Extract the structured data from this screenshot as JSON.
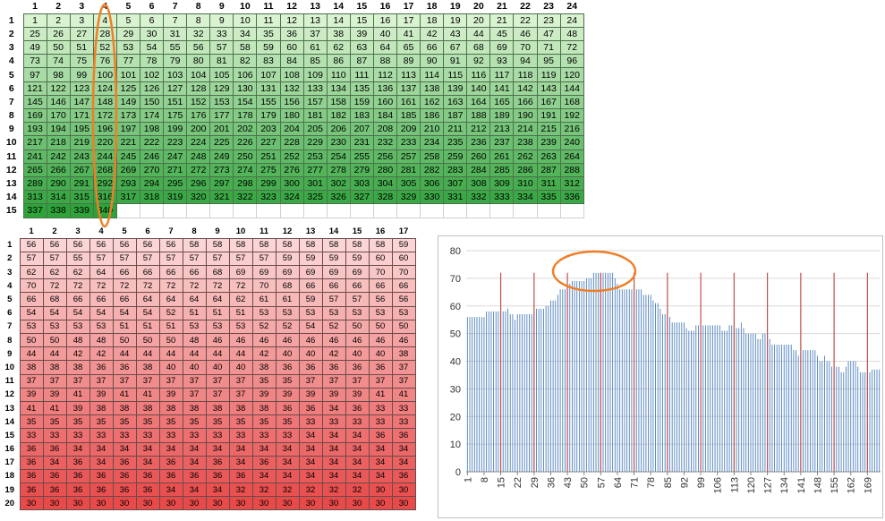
{
  "green_table": {
    "col_headers": [
      "1",
      "2",
      "3",
      "4",
      "5",
      "6",
      "7",
      "8",
      "9",
      "10",
      "11",
      "12",
      "13",
      "14",
      "15",
      "16",
      "17",
      "18",
      "19",
      "20",
      "21",
      "22",
      "23",
      "24"
    ],
    "row_headers": [
      "1",
      "2",
      "3",
      "4",
      "5",
      "6",
      "7",
      "8",
      "9",
      "10",
      "11",
      "12",
      "13",
      "14",
      "15"
    ],
    "rows": [
      [
        "1",
        "2",
        "3",
        "4",
        "5",
        "6",
        "7",
        "8",
        "9",
        "10",
        "11",
        "12",
        "13",
        "14",
        "15",
        "16",
        "17",
        "18",
        "19",
        "20",
        "21",
        "22",
        "23",
        "24"
      ],
      [
        "25",
        "26",
        "27",
        "28",
        "29",
        "30",
        "31",
        "32",
        "33",
        "34",
        "35",
        "36",
        "37",
        "38",
        "39",
        "40",
        "41",
        "42",
        "43",
        "44",
        "45",
        "46",
        "47",
        "48"
      ],
      [
        "49",
        "50",
        "51",
        "52",
        "53",
        "54",
        "55",
        "56",
        "57",
        "58",
        "59",
        "60",
        "61",
        "62",
        "63",
        "64",
        "65",
        "66",
        "67",
        "68",
        "69",
        "70",
        "71",
        "72"
      ],
      [
        "73",
        "74",
        "75",
        "76",
        "77",
        "78",
        "79",
        "80",
        "81",
        "82",
        "83",
        "84",
        "85",
        "86",
        "87",
        "88",
        "89",
        "90",
        "91",
        "92",
        "93",
        "94",
        "95",
        "96"
      ],
      [
        "97",
        "98",
        "99",
        "100",
        "101",
        "102",
        "103",
        "104",
        "105",
        "106",
        "107",
        "108",
        "109",
        "110",
        "111",
        "112",
        "113",
        "114",
        "115",
        "116",
        "117",
        "118",
        "119",
        "120"
      ],
      [
        "121",
        "122",
        "123",
        "124",
        "125",
        "126",
        "127",
        "128",
        "129",
        "130",
        "131",
        "132",
        "133",
        "134",
        "135",
        "136",
        "137",
        "138",
        "139",
        "140",
        "141",
        "142",
        "143",
        "144"
      ],
      [
        "145",
        "146",
        "147",
        "148",
        "149",
        "150",
        "151",
        "152",
        "153",
        "154",
        "155",
        "156",
        "157",
        "158",
        "159",
        "160",
        "161",
        "162",
        "163",
        "164",
        "165",
        "166",
        "167",
        "168"
      ],
      [
        "169",
        "170",
        "171",
        "172",
        "173",
        "174",
        "175",
        "176",
        "177",
        "178",
        "179",
        "180",
        "181",
        "182",
        "183",
        "184",
        "185",
        "186",
        "187",
        "188",
        "189",
        "190",
        "191",
        "192"
      ],
      [
        "193",
        "194",
        "195",
        "196",
        "197",
        "198",
        "199",
        "200",
        "201",
        "202",
        "203",
        "204",
        "205",
        "206",
        "207",
        "208",
        "209",
        "210",
        "211",
        "212",
        "213",
        "214",
        "215",
        "216"
      ],
      [
        "217",
        "218",
        "219",
        "220",
        "221",
        "222",
        "223",
        "224",
        "225",
        "226",
        "227",
        "228",
        "229",
        "230",
        "231",
        "232",
        "233",
        "234",
        "235",
        "236",
        "237",
        "238",
        "239",
        "240"
      ],
      [
        "241",
        "242",
        "243",
        "244",
        "245",
        "246",
        "247",
        "248",
        "249",
        "250",
        "251",
        "252",
        "253",
        "254",
        "255",
        "256",
        "257",
        "258",
        "259",
        "260",
        "261",
        "262",
        "263",
        "264"
      ],
      [
        "265",
        "266",
        "267",
        "268",
        "269",
        "270",
        "271",
        "272",
        "273",
        "274",
        "275",
        "276",
        "277",
        "278",
        "279",
        "280",
        "281",
        "282",
        "283",
        "284",
        "285",
        "286",
        "287",
        "288"
      ],
      [
        "289",
        "290",
        "291",
        "292",
        "293",
        "294",
        "295",
        "296",
        "297",
        "298",
        "299",
        "300",
        "301",
        "302",
        "303",
        "304",
        "305",
        "306",
        "307",
        "308",
        "309",
        "310",
        "311",
        "312"
      ],
      [
        "313",
        "314",
        "315",
        "316",
        "317",
        "318",
        "319",
        "320",
        "321",
        "322",
        "323",
        "324",
        "325",
        "326",
        "327",
        "328",
        "329",
        "330",
        "331",
        "332",
        "333",
        "334",
        "335",
        "336"
      ],
      [
        "337",
        "338",
        "339",
        "340",
        "",
        "",
        "",
        "",
        "",
        "",
        "",
        "",
        "",
        "",
        "",
        "",
        "",
        "",
        "",
        "",
        "",
        "",
        "",
        ""
      ]
    ]
  },
  "red_table": {
    "col_headers": [
      "1",
      "2",
      "3",
      "4",
      "5",
      "6",
      "7",
      "8",
      "9",
      "10",
      "11",
      "12",
      "13",
      "14",
      "15",
      "16",
      "17"
    ],
    "row_headers": [
      "1",
      "2",
      "3",
      "4",
      "5",
      "6",
      "7",
      "8",
      "9",
      "10",
      "11",
      "12",
      "13",
      "14",
      "15",
      "16",
      "17",
      "18",
      "19",
      "20"
    ],
    "rows": [
      [
        "56",
        "56",
        "56",
        "56",
        "56",
        "56",
        "56",
        "58",
        "58",
        "58",
        "58",
        "58",
        "58",
        "58",
        "58",
        "58",
        "59"
      ],
      [
        "57",
        "57",
        "55",
        "57",
        "57",
        "57",
        "57",
        "57",
        "57",
        "57",
        "57",
        "59",
        "59",
        "59",
        "59",
        "60",
        "60"
      ],
      [
        "62",
        "62",
        "62",
        "64",
        "66",
        "66",
        "66",
        "66",
        "68",
        "69",
        "69",
        "69",
        "69",
        "69",
        "69",
        "70",
        "70"
      ],
      [
        "70",
        "72",
        "72",
        "72",
        "72",
        "72",
        "72",
        "72",
        "72",
        "72",
        "70",
        "68",
        "66",
        "66",
        "66",
        "66",
        "66"
      ],
      [
        "66",
        "68",
        "66",
        "66",
        "66",
        "64",
        "64",
        "64",
        "64",
        "62",
        "61",
        "61",
        "59",
        "57",
        "57",
        "56",
        "56"
      ],
      [
        "54",
        "54",
        "54",
        "54",
        "54",
        "54",
        "52",
        "51",
        "51",
        "51",
        "53",
        "53",
        "53",
        "53",
        "53",
        "53",
        "53"
      ],
      [
        "53",
        "53",
        "53",
        "53",
        "51",
        "51",
        "51",
        "53",
        "53",
        "53",
        "52",
        "52",
        "54",
        "52",
        "50",
        "50",
        "50"
      ],
      [
        "50",
        "50",
        "48",
        "48",
        "50",
        "50",
        "50",
        "48",
        "46",
        "46",
        "46",
        "46",
        "46",
        "46",
        "46",
        "46",
        "46"
      ],
      [
        "44",
        "44",
        "42",
        "42",
        "44",
        "44",
        "44",
        "44",
        "44",
        "44",
        "42",
        "40",
        "40",
        "42",
        "40",
        "40",
        "38"
      ],
      [
        "38",
        "38",
        "38",
        "36",
        "36",
        "38",
        "40",
        "40",
        "40",
        "40",
        "38",
        "36",
        "36",
        "36",
        "36",
        "36",
        "37"
      ],
      [
        "37",
        "37",
        "37",
        "37",
        "37",
        "37",
        "37",
        "37",
        "37",
        "37",
        "35",
        "35",
        "37",
        "37",
        "37",
        "37",
        "37"
      ],
      [
        "39",
        "39",
        "41",
        "39",
        "41",
        "41",
        "39",
        "37",
        "37",
        "37",
        "39",
        "39",
        "39",
        "39",
        "39",
        "41",
        "41"
      ],
      [
        "41",
        "41",
        "39",
        "38",
        "38",
        "38",
        "38",
        "38",
        "38",
        "38",
        "38",
        "36",
        "36",
        "34",
        "36",
        "33",
        "33"
      ],
      [
        "35",
        "35",
        "35",
        "35",
        "35",
        "35",
        "35",
        "35",
        "35",
        "35",
        "35",
        "35",
        "33",
        "33",
        "33",
        "33",
        "33"
      ],
      [
        "33",
        "33",
        "33",
        "33",
        "33",
        "33",
        "33",
        "33",
        "33",
        "33",
        "33",
        "33",
        "34",
        "34",
        "34",
        "36",
        "36"
      ],
      [
        "36",
        "36",
        "34",
        "34",
        "34",
        "34",
        "34",
        "34",
        "34",
        "34",
        "34",
        "34",
        "34",
        "34",
        "34",
        "34",
        "34"
      ],
      [
        "36",
        "34",
        "36",
        "34",
        "36",
        "34",
        "36",
        "34",
        "36",
        "34",
        "36",
        "34",
        "34",
        "34",
        "34",
        "34",
        "34"
      ],
      [
        "36",
        "36",
        "36",
        "36",
        "36",
        "36",
        "36",
        "36",
        "36",
        "36",
        "34",
        "34",
        "34",
        "34",
        "34",
        "34",
        "36"
      ],
      [
        "36",
        "36",
        "36",
        "36",
        "36",
        "36",
        "34",
        "34",
        "34",
        "32",
        "32",
        "32",
        "32",
        "32",
        "32",
        "30",
        "30"
      ],
      [
        "30",
        "30",
        "30",
        "30",
        "30",
        "30",
        "30",
        "30",
        "30",
        "30",
        "30",
        "30",
        "30",
        "30",
        "30",
        "30",
        "30"
      ]
    ]
  },
  "colors": {
    "green_light": "#d9f2d0",
    "green_dark": "#2ea33a",
    "red_light": "#fbd5d5",
    "red_dark": "#e84a4a",
    "bar_color": "#4f81bd",
    "marker_color": "#c0504d",
    "highlight_color": "#f07e26",
    "gridline_color": "#d9d9d9"
  },
  "chart_data": {
    "type": "bar",
    "title": "",
    "xlabel": "",
    "ylabel": "",
    "ylim": [
      0,
      80
    ],
    "yticks": [
      "0",
      "10",
      "20",
      "30",
      "40",
      "50",
      "60",
      "70",
      "80"
    ],
    "x_tick_labels": [
      "1",
      "8",
      "15",
      "22",
      "29",
      "36",
      "43",
      "50",
      "57",
      "64",
      "71",
      "78",
      "85",
      "92",
      "99",
      "106",
      "113",
      "120",
      "127",
      "134",
      "141",
      "148",
      "155",
      "162",
      "169"
    ],
    "x_tick_every": 7,
    "n_bars": 174,
    "series": [
      {
        "values": [
          56,
          56,
          56,
          56,
          56,
          56,
          56,
          56,
          58,
          58,
          58,
          58,
          58,
          58,
          58,
          58,
          58,
          59,
          57,
          57,
          55,
          57,
          57,
          57,
          57,
          57,
          57,
          57,
          57,
          59,
          59,
          59,
          59,
          60,
          60,
          62,
          62,
          62,
          64,
          66,
          66,
          66,
          66,
          68,
          69,
          69,
          69,
          69,
          69,
          69,
          70,
          70,
          70,
          72,
          72,
          72,
          72,
          72,
          72,
          72,
          72,
          72,
          70,
          68,
          66,
          66,
          66,
          66,
          66,
          66,
          68,
          66,
          66,
          66,
          64,
          64,
          64,
          64,
          62,
          61,
          61,
          59,
          57,
          57,
          56,
          56,
          54,
          54,
          54,
          54,
          54,
          54,
          52,
          51,
          51,
          51,
          53,
          53,
          53,
          53,
          53,
          53,
          53,
          53,
          53,
          53,
          53,
          51,
          51,
          51,
          53,
          53,
          53,
          52,
          52,
          54,
          52,
          50,
          50,
          50,
          50,
          50,
          48,
          48,
          50,
          50,
          50,
          48,
          46,
          46,
          46,
          46,
          46,
          46,
          46,
          46,
          46,
          44,
          44,
          42,
          42,
          44,
          44,
          44,
          44,
          44,
          44,
          42,
          40,
          40,
          42,
          40,
          40,
          38,
          38,
          38,
          38,
          36,
          36,
          38,
          40,
          40,
          40,
          40,
          38,
          36,
          36,
          36,
          36,
          36,
          37,
          37,
          37,
          37
        ]
      }
    ],
    "marker_lines_at": [
      15,
      29,
      43,
      57,
      71,
      85,
      99,
      113,
      127,
      141,
      155,
      169
    ]
  }
}
